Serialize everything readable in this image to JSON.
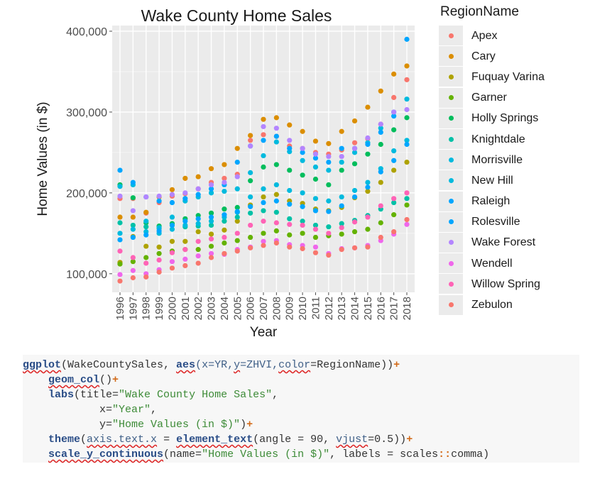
{
  "chart_data": {
    "type": "scatter",
    "title": "Wake County Home Sales",
    "xlabel": "Year",
    "ylabel": "Home Values (in $)",
    "categories": [
      "1996",
      "1997",
      "1998",
      "1999",
      "2000",
      "2001",
      "2002",
      "2003",
      "2004",
      "2005",
      "2006",
      "2007",
      "2008",
      "2009",
      "2010",
      "2011",
      "2012",
      "2013",
      "2014",
      "2015",
      "2016",
      "2017",
      "2018"
    ],
    "ylim": [
      77000,
      407000
    ],
    "yticks": [
      100000,
      200000,
      300000,
      400000
    ],
    "ytick_labels": [
      "100,000",
      "200,000",
      "300,000",
      "400,000"
    ],
    "grid": true,
    "legend_title": "RegionName",
    "legend_position": "right",
    "series": [
      {
        "name": "Apex",
        "color": "#F8766D",
        "values": [
          193000,
          193000,
          175000,
          188000,
          196000,
          199000,
          205000,
          213000,
          218000,
          223000,
          265000,
          272000,
          270000,
          258000,
          255000,
          250000,
          248000,
          253000,
          262000,
          267000,
          285000,
          318000,
          340000
        ]
      },
      {
        "name": "Cary",
        "color": "#DB8E00",
        "values": [
          170000,
          170000,
          176000,
          195000,
          204000,
          218000,
          220000,
          230000,
          235000,
          255000,
          271000,
          291000,
          293000,
          284000,
          276000,
          264000,
          261000,
          276000,
          289000,
          306000,
          326000,
          347000,
          357000
        ]
      },
      {
        "name": "Fuquay Varina",
        "color": "#AEA200",
        "values": [
          114000,
          146000,
          134000,
          133000,
          140000,
          140000,
          152000,
          149000,
          154000,
          165000,
          185000,
          195000,
          198000,
          190000,
          187000,
          180000,
          178000,
          182000,
          194000,
          202000,
          213000,
          228000,
          238000
        ]
      },
      {
        "name": "Garner",
        "color": "#64B200",
        "values": [
          112000,
          115000,
          120000,
          125000,
          128000,
          130000,
          130000,
          134000,
          138000,
          141000,
          145000,
          150000,
          153000,
          148000,
          150000,
          145000,
          147000,
          149000,
          152000,
          155000,
          163000,
          173000,
          185000
        ]
      },
      {
        "name": "Holly Springs",
        "color": "#00BD5C",
        "values": [
          210000,
          194000,
          163000,
          159000,
          162000,
          168000,
          172000,
          175000,
          180000,
          182000,
          215000,
          232000,
          235000,
          228000,
          222000,
          217000,
          210000,
          228000,
          236000,
          248000,
          260000,
          278000,
          293000
        ]
      },
      {
        "name": "Knightdale",
        "color": "#00C1A7",
        "values": [
          163000,
          160000,
          158000,
          156000,
          160000,
          158000,
          159000,
          160000,
          165000,
          170000,
          175000,
          178000,
          176000,
          168000,
          165000,
          160000,
          158000,
          162000,
          166000,
          172000,
          180000,
          188000,
          193000
        ]
      },
      {
        "name": "Morrisville",
        "color": "#00BADE",
        "values": [
          208000,
          210000,
          165000,
          157000,
          170000,
          190000,
          195000,
          200000,
          202000,
          205000,
          225000,
          246000,
          263000,
          251000,
          240000,
          232000,
          228000,
          238000,
          250000,
          262000,
          280000,
          300000,
          316000
        ]
      },
      {
        "name": "New Hill",
        "color": "#00BADE",
        "values": [
          150000,
          155000,
          152000,
          150000,
          155000,
          160000,
          162000,
          165000,
          170000,
          176000,
          195000,
          205000,
          210000,
          203000,
          200000,
          193000,
          190000,
          195000,
          203000,
          213000,
          230000,
          252000,
          265000
        ]
      },
      {
        "name": "Raleigh",
        "color": "#00A6FF",
        "values": [
          142000,
          145000,
          148000,
          153000,
          160000,
          165000,
          168000,
          170000,
          173000,
          177000,
          183000,
          188000,
          190000,
          186000,
          183000,
          178000,
          177000,
          184000,
          195000,
          207000,
          226000,
          240000,
          260000
        ]
      },
      {
        "name": "Rolesville",
        "color": "#00A6FF",
        "values": [
          228000,
          213000,
          195000,
          190000,
          188000,
          193000,
          198000,
          205000,
          210000,
          238000,
          258000,
          265000,
          270000,
          255000,
          250000,
          243000,
          238000,
          255000,
          255000,
          260000,
          275000,
          295000,
          390000
        ]
      },
      {
        "name": "Wake Forest",
        "color": "#B385FF",
        "values": [
          196000,
          178000,
          195000,
          196000,
          198000,
          200000,
          205000,
          210000,
          213000,
          220000,
          258000,
          282000,
          280000,
          265000,
          255000,
          248000,
          245000,
          245000,
          255000,
          268000,
          285000,
          300000,
          303000
        ]
      },
      {
        "name": "Wendell",
        "color": "#EF67EB",
        "values": [
          99000,
          104000,
          100000,
          105000,
          115000,
          118000,
          122000,
          125000,
          124000,
          130000,
          133000,
          140000,
          141000,
          136000,
          135000,
          133000,
          125000,
          131000,
          132000,
          135000,
          141000,
          149000,
          161000
        ]
      },
      {
        "name": "Willow Spring",
        "color": "#FF63B6",
        "values": [
          128000,
          120000,
          113000,
          117000,
          126000,
          130000,
          140000,
          143000,
          145000,
          150000,
          160000,
          165000,
          163000,
          161000,
          160000,
          155000,
          150000,
          157000,
          164000,
          170000,
          184000,
          193000,
          200000
        ]
      },
      {
        "name": "Zebulon",
        "color": "#F8766D",
        "values": [
          91000,
          95000,
          96000,
          102000,
          107000,
          110000,
          113000,
          120000,
          125000,
          128000,
          132000,
          135000,
          138000,
          133000,
          131000,
          126000,
          123000,
          130000,
          132000,
          133000,
          145000,
          152000,
          167000
        ]
      }
    ]
  },
  "code": {
    "lines": [
      [
        {
          "t": "ggplot",
          "c": "fn",
          "sq": true
        },
        {
          "t": "(WakeCountySales, ",
          "c": "plain"
        },
        {
          "t": "aes",
          "c": "fn",
          "sq": true
        },
        {
          "t": "(x=YR,",
          "c": "arg"
        },
        {
          "t": "y",
          "c": "arg",
          "sq": true
        },
        {
          "t": "=ZHVI,",
          "c": "arg"
        },
        {
          "t": "color",
          "c": "arg",
          "sq": true
        },
        {
          "t": "=RegionName))",
          "c": "plain"
        },
        {
          "t": "+",
          "c": "op"
        }
      ],
      [
        {
          "t": "    ",
          "c": "plain"
        },
        {
          "t": "geom_col",
          "c": "fn",
          "sq": true
        },
        {
          "t": "()",
          "c": "plain"
        },
        {
          "t": "+",
          "c": "op"
        }
      ],
      [
        {
          "t": "    ",
          "c": "plain"
        },
        {
          "t": "labs",
          "c": "fn"
        },
        {
          "t": "(title=",
          "c": "plain"
        },
        {
          "t": "\"Wake County Home Sales\"",
          "c": "str"
        },
        {
          "t": ",",
          "c": "plain"
        }
      ],
      [
        {
          "t": "            x=",
          "c": "plain"
        },
        {
          "t": "\"Year\"",
          "c": "str"
        },
        {
          "t": ",",
          "c": "plain"
        }
      ],
      [
        {
          "t": "            y=",
          "c": "plain"
        },
        {
          "t": "\"Home Values (in $)\"",
          "c": "str"
        },
        {
          "t": ")",
          "c": "plain"
        },
        {
          "t": "+",
          "c": "op"
        }
      ],
      [
        {
          "t": "    ",
          "c": "plain"
        },
        {
          "t": "theme",
          "c": "fn"
        },
        {
          "t": "(",
          "c": "plain"
        },
        {
          "t": "axis.text.x",
          "c": "arg",
          "sq": true
        },
        {
          "t": " = ",
          "c": "plain"
        },
        {
          "t": "element_text",
          "c": "fn",
          "sq": true
        },
        {
          "t": "(angle = 90, ",
          "c": "plain"
        },
        {
          "t": "vjust",
          "c": "arg",
          "sq": true
        },
        {
          "t": "=0.5))",
          "c": "plain"
        },
        {
          "t": "+",
          "c": "op"
        }
      ],
      [
        {
          "t": "    ",
          "c": "plain"
        },
        {
          "t": "scale_y_continuous",
          "c": "fn",
          "sq": true
        },
        {
          "t": "(name=",
          "c": "plain"
        },
        {
          "t": "\"Home Values (in $)\"",
          "c": "str"
        },
        {
          "t": ", labels = scales",
          "c": "plain"
        },
        {
          "t": "::",
          "c": "op"
        },
        {
          "t": "comma)",
          "c": "plain"
        }
      ]
    ]
  }
}
